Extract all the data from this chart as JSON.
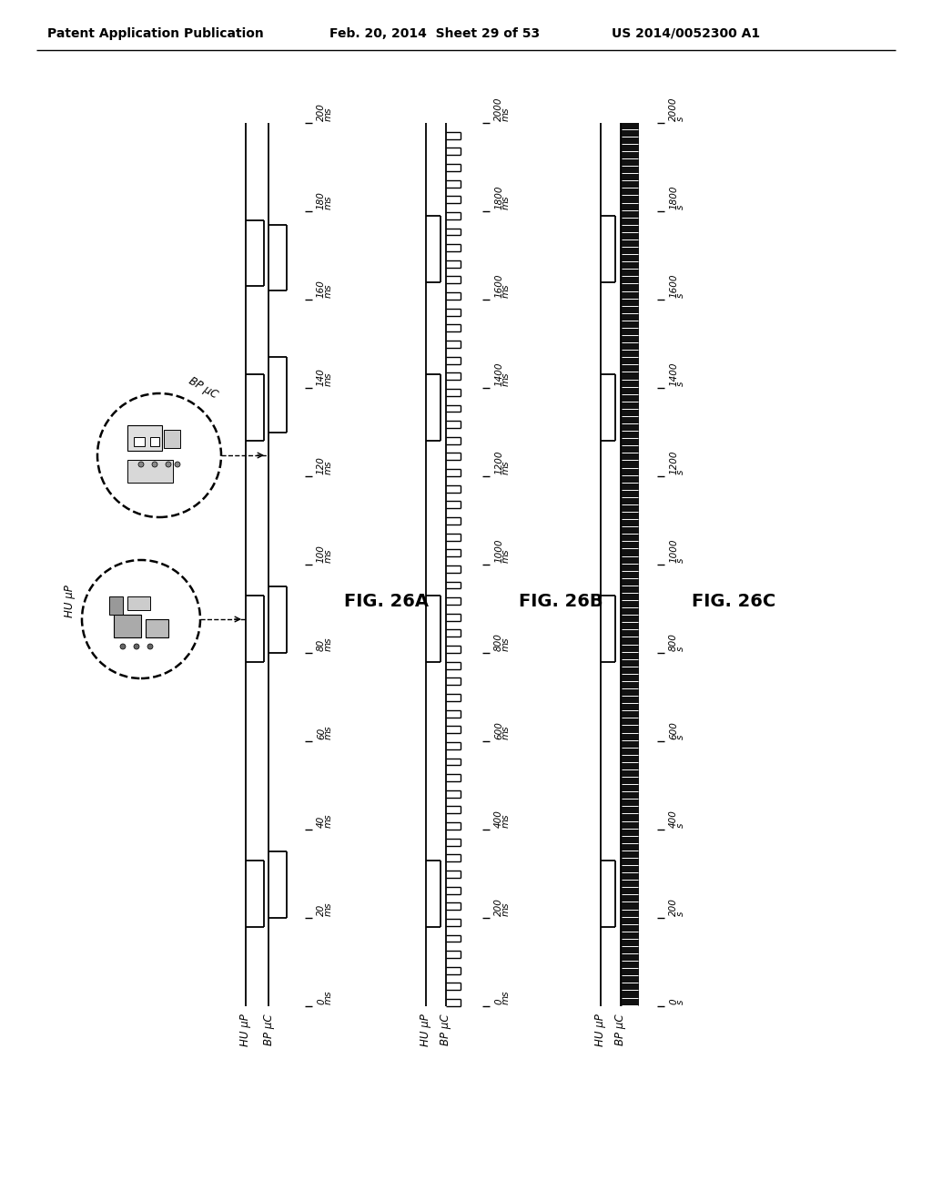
{
  "header_left": "Patent Application Publication",
  "header_mid": "Feb. 20, 2014  Sheet 29 of 53",
  "header_right": "US 2014/0052300 A1",
  "fig_labels": [
    "FIG. 26A",
    "FIG. 26B",
    "FIG. 26C"
  ],
  "fig26a_ticks": [
    0,
    20,
    40,
    60,
    80,
    100,
    120,
    140,
    160,
    180,
    200
  ],
  "fig26a_unit": "ms",
  "fig26b_ticks": [
    0,
    200,
    400,
    600,
    800,
    1000,
    1200,
    1400,
    1600,
    1800,
    2000
  ],
  "fig26b_unit": "ms",
  "fig26c_ticks": [
    0,
    200,
    400,
    600,
    800,
    1000,
    1200,
    1400,
    1600,
    1800,
    2000
  ],
  "fig26c_unit": "s",
  "background_color": "#ffffff",
  "line_color": "#000000"
}
